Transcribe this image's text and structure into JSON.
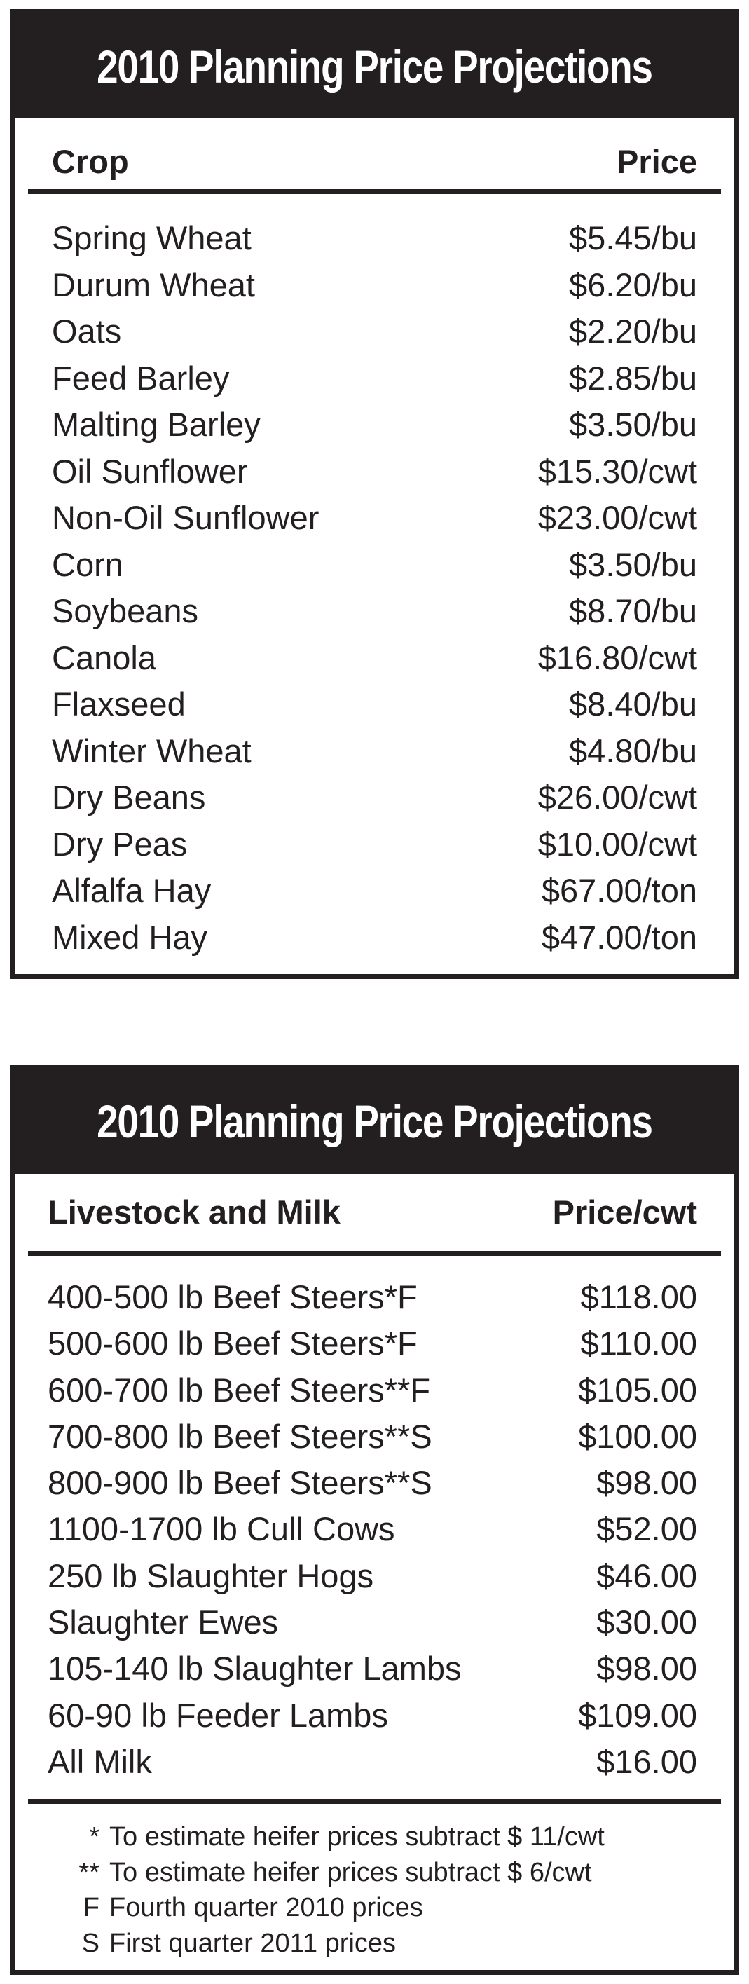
{
  "crops": {
    "title": "2010 Planning Price Projections",
    "col_item": "Crop",
    "col_price": "Price",
    "rows": [
      {
        "name": "Spring Wheat",
        "price": "$5.45/bu"
      },
      {
        "name": "Durum Wheat",
        "price": "$6.20/bu"
      },
      {
        "name": "Oats",
        "price": "$2.20/bu"
      },
      {
        "name": "Feed Barley",
        "price": "$2.85/bu"
      },
      {
        "name": "Malting Barley",
        "price": "$3.50/bu"
      },
      {
        "name": "Oil Sunflower",
        "price": "$15.30/cwt"
      },
      {
        "name": "Non-Oil Sunflower",
        "price": "$23.00/cwt"
      },
      {
        "name": "Corn",
        "price": "$3.50/bu"
      },
      {
        "name": "Soybeans",
        "price": "$8.70/bu"
      },
      {
        "name": "Canola",
        "price": "$16.80/cwt"
      },
      {
        "name": "Flaxseed",
        "price": "$8.40/bu"
      },
      {
        "name": "Winter Wheat",
        "price": "$4.80/bu"
      },
      {
        "name": "Dry Beans",
        "price": "$26.00/cwt"
      },
      {
        "name": "Dry Peas",
        "price": "$10.00/cwt"
      },
      {
        "name": "Alfalfa Hay",
        "price": "$67.00/ton"
      },
      {
        "name": "Mixed Hay",
        "price": "$47.00/ton"
      }
    ]
  },
  "livestock": {
    "title": "2010 Planning Price Projections",
    "col_item": "Livestock and Milk",
    "col_price": "Price/cwt",
    "rows": [
      {
        "name": "400-500 lb Beef Steers*F",
        "price": "$118.00"
      },
      {
        "name": "500-600 lb Beef Steers*F",
        "price": "$110.00"
      },
      {
        "name": "600-700 lb Beef Steers**F",
        "price": "$105.00"
      },
      {
        "name": "700-800 lb Beef Steers**S",
        "price": "$100.00"
      },
      {
        "name": "800-900 lb Beef Steers**S",
        "price": "$98.00"
      },
      {
        "name": "1100-1700 lb Cull Cows",
        "price": "$52.00"
      },
      {
        "name": "250 lb Slaughter Hogs",
        "price": "$46.00"
      },
      {
        "name": "Slaughter Ewes",
        "price": "$30.00"
      },
      {
        "name": "105-140 lb Slaughter Lambs",
        "price": "$98.00"
      },
      {
        "name": "60-90 lb Feeder Lambs",
        "price": "$109.00"
      },
      {
        "name": "All Milk",
        "price": "$16.00"
      }
    ],
    "notes": [
      {
        "symbol": "*",
        "text": "To estimate heifer prices subtract $ 11/cwt"
      },
      {
        "symbol": "**",
        "text": "To estimate heifer prices subtract $ 6/cwt"
      },
      {
        "symbol": "F",
        "text": "Fourth quarter 2010 prices"
      },
      {
        "symbol": "S",
        "text": "First quarter 2011 prices"
      }
    ]
  }
}
